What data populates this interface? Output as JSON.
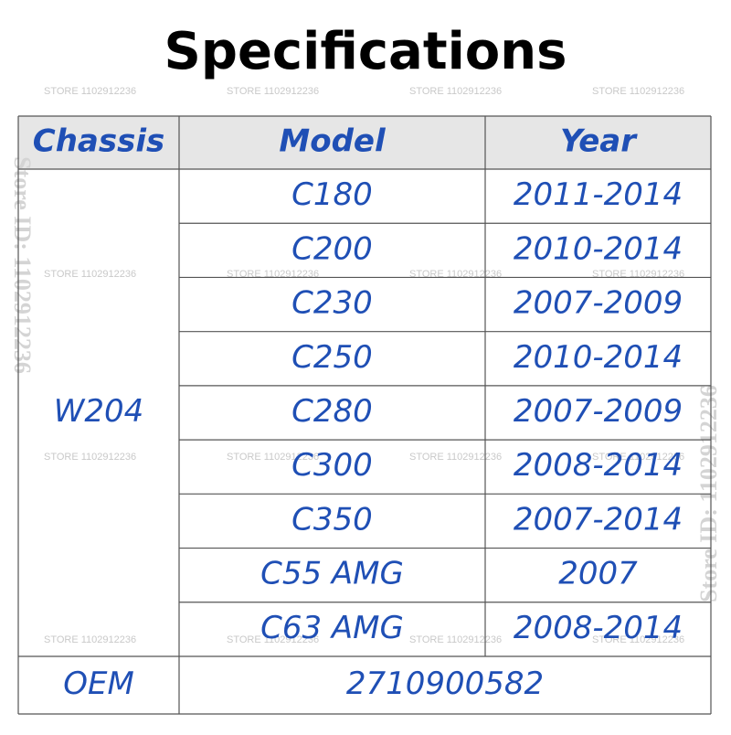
{
  "title": "Specifications",
  "watermark": "STORE 1102912236",
  "side_watermark": "Store ID: 1102912236",
  "table": {
    "header": [
      "Chassis",
      "Model",
      "Year"
    ],
    "chassis": "W204",
    "rows": [
      [
        "C180",
        "2011-2014"
      ],
      [
        "C200",
        "2010-2014"
      ],
      [
        "C230",
        "2007-2009"
      ],
      [
        "C250",
        "2010-2014"
      ],
      [
        "C280",
        "2007-2009"
      ],
      [
        "C300",
        "2008-2014"
      ],
      [
        "C350",
        "2007-2014"
      ],
      [
        "C55 AMG",
        "2007"
      ],
      [
        "C63 AMG",
        "2008-2014"
      ]
    ],
    "oem": {
      "label": "OEM",
      "value": "2710900582"
    }
  }
}
